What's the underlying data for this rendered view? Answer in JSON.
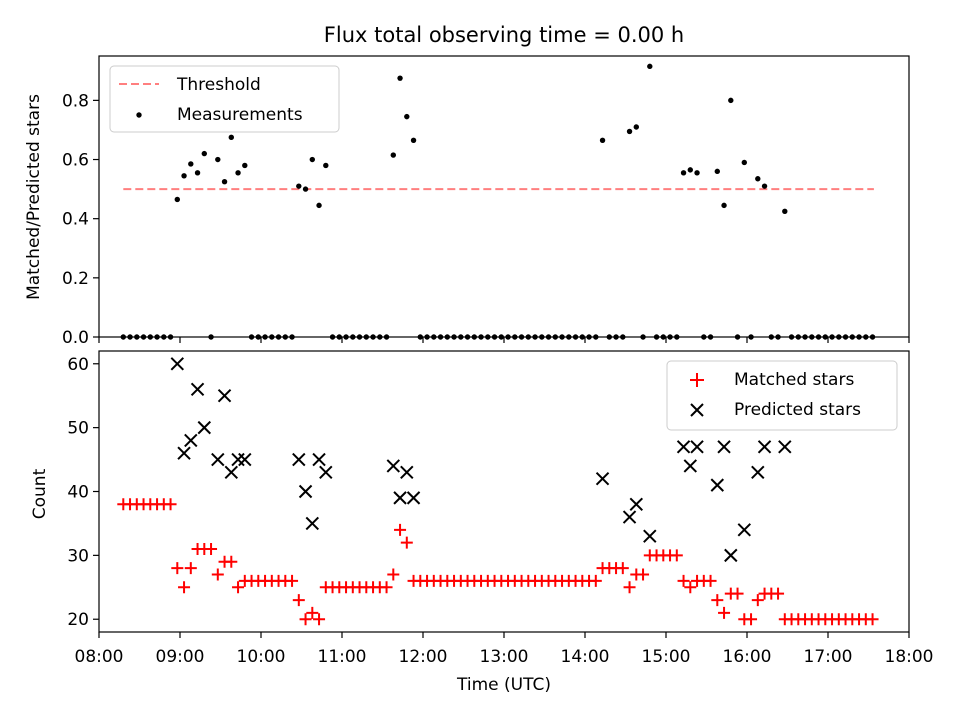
{
  "chart_data": [
    {
      "type": "scatter",
      "title": "Flux total observing time = 0.00 h",
      "ylabel": "Matched/Predicted stars",
      "xlabel": "",
      "xlim": [
        "08:00",
        "18:00"
      ],
      "ylim": [
        0,
        0.95
      ],
      "yticks": [
        "0.0",
        "0.2",
        "0.4",
        "0.6",
        "0.8"
      ],
      "grid": false,
      "legend_position": "top-left",
      "threshold": {
        "name": "Threshold",
        "y": 0.5,
        "x_range": [
          "08:18",
          "17:34"
        ],
        "color": "#ff7f7f",
        "style": "dashed"
      },
      "series": [
        {
          "name": "Measurements",
          "color": "#000000",
          "points": [
            [
              "08:18",
              0
            ],
            [
              "08:23",
              0
            ],
            [
              "08:28",
              0
            ],
            [
              "08:33",
              0
            ],
            [
              "08:38",
              0
            ],
            [
              "08:43",
              0
            ],
            [
              "08:48",
              0
            ],
            [
              "08:53",
              0
            ],
            [
              "08:58",
              0.465
            ],
            [
              "09:03",
              0.545
            ],
            [
              "09:08",
              0.585
            ],
            [
              "09:13",
              0.555
            ],
            [
              "09:18",
              0.62
            ],
            [
              "09:23",
              0
            ],
            [
              "09:28",
              0.6
            ],
            [
              "09:33",
              0.525
            ],
            [
              "09:38",
              0.675
            ],
            [
              "09:43",
              0.555
            ],
            [
              "09:48",
              0.58
            ],
            [
              "09:53",
              0
            ],
            [
              "09:58",
              0
            ],
            [
              "10:03",
              0
            ],
            [
              "10:08",
              0
            ],
            [
              "10:13",
              0
            ],
            [
              "10:18",
              0
            ],
            [
              "10:23",
              0
            ],
            [
              "10:28",
              0.51
            ],
            [
              "10:33",
              0.5
            ],
            [
              "10:38",
              0.6
            ],
            [
              "10:43",
              0.445
            ],
            [
              "10:48",
              0.58
            ],
            [
              "10:53",
              0
            ],
            [
              "10:58",
              0
            ],
            [
              "11:03",
              0
            ],
            [
              "11:08",
              0
            ],
            [
              "11:13",
              0
            ],
            [
              "11:18",
              0
            ],
            [
              "11:23",
              0
            ],
            [
              "11:28",
              0
            ],
            [
              "11:33",
              0
            ],
            [
              "11:38",
              0.615
            ],
            [
              "11:43",
              0.875
            ],
            [
              "11:48",
              0.745
            ],
            [
              "11:53",
              0.665
            ],
            [
              "11:58",
              0
            ],
            [
              "12:03",
              0
            ],
            [
              "12:08",
              0
            ],
            [
              "12:13",
              0
            ],
            [
              "12:18",
              0
            ],
            [
              "12:23",
              0
            ],
            [
              "12:28",
              0
            ],
            [
              "12:33",
              0
            ],
            [
              "12:38",
              0
            ],
            [
              "12:43",
              0
            ],
            [
              "12:48",
              0
            ],
            [
              "12:53",
              0
            ],
            [
              "12:58",
              0
            ],
            [
              "13:03",
              0
            ],
            [
              "13:08",
              0
            ],
            [
              "13:13",
              0
            ],
            [
              "13:18",
              0
            ],
            [
              "13:23",
              0
            ],
            [
              "13:28",
              0
            ],
            [
              "13:33",
              0
            ],
            [
              "13:38",
              0
            ],
            [
              "13:43",
              0
            ],
            [
              "13:48",
              0
            ],
            [
              "13:53",
              0
            ],
            [
              "13:58",
              0
            ],
            [
              "14:03",
              0
            ],
            [
              "14:08",
              0
            ],
            [
              "14:13",
              0.665
            ],
            [
              "14:18",
              0
            ],
            [
              "14:23",
              0
            ],
            [
              "14:28",
              0
            ],
            [
              "14:33",
              0.695
            ],
            [
              "14:38",
              0.71
            ],
            [
              "14:43",
              0
            ],
            [
              "14:48",
              0.915
            ],
            [
              "14:53",
              0
            ],
            [
              "14:58",
              0
            ],
            [
              "15:03",
              0
            ],
            [
              "15:08",
              0
            ],
            [
              "15:13",
              0.555
            ],
            [
              "15:18",
              0.565
            ],
            [
              "15:23",
              0.555
            ],
            [
              "15:28",
              0
            ],
            [
              "15:33",
              0
            ],
            [
              "15:38",
              0.56
            ],
            [
              "15:43",
              0.445
            ],
            [
              "15:48",
              0.8
            ],
            [
              "15:53",
              0
            ],
            [
              "15:58",
              0.59
            ],
            [
              "16:03",
              0
            ],
            [
              "16:08",
              0.535
            ],
            [
              "16:13",
              0.51
            ],
            [
              "16:18",
              0
            ],
            [
              "16:23",
              0
            ],
            [
              "16:28",
              0.425
            ],
            [
              "16:33",
              0
            ],
            [
              "16:38",
              0
            ],
            [
              "16:43",
              0
            ],
            [
              "16:48",
              0
            ],
            [
              "16:53",
              0
            ],
            [
              "16:58",
              0
            ],
            [
              "17:03",
              0
            ],
            [
              "17:08",
              0
            ],
            [
              "17:13",
              0
            ],
            [
              "17:18",
              0
            ],
            [
              "17:23",
              0
            ],
            [
              "17:28",
              0
            ],
            [
              "17:33",
              0
            ]
          ]
        }
      ]
    },
    {
      "type": "scatter",
      "title": "",
      "xlabel": "Time (UTC)",
      "ylabel": "Count",
      "xlim": [
        "08:00",
        "18:00"
      ],
      "ylim": [
        18,
        62
      ],
      "xticks": [
        "08:00",
        "09:00",
        "10:00",
        "11:00",
        "12:00",
        "13:00",
        "14:00",
        "15:00",
        "16:00",
        "17:00",
        "18:00"
      ],
      "yticks": [
        "20",
        "30",
        "40",
        "50",
        "60"
      ],
      "grid": false,
      "legend_position": "top-right",
      "series": [
        {
          "name": "Matched stars",
          "marker": "plus",
          "color": "#ff0000",
          "points": [
            [
              "08:18",
              38
            ],
            [
              "08:23",
              38
            ],
            [
              "08:28",
              38
            ],
            [
              "08:33",
              38
            ],
            [
              "08:38",
              38
            ],
            [
              "08:43",
              38
            ],
            [
              "08:48",
              38
            ],
            [
              "08:53",
              38
            ],
            [
              "08:58",
              28
            ],
            [
              "09:03",
              25
            ],
            [
              "09:08",
              28
            ],
            [
              "09:13",
              31
            ],
            [
              "09:18",
              31
            ],
            [
              "09:23",
              31
            ],
            [
              "09:28",
              27
            ],
            [
              "09:33",
              29
            ],
            [
              "09:38",
              29
            ],
            [
              "09:43",
              25
            ],
            [
              "09:48",
              26
            ],
            [
              "09:53",
              26
            ],
            [
              "09:58",
              26
            ],
            [
              "10:03",
              26
            ],
            [
              "10:08",
              26
            ],
            [
              "10:13",
              26
            ],
            [
              "10:18",
              26
            ],
            [
              "10:23",
              26
            ],
            [
              "10:28",
              23
            ],
            [
              "10:33",
              20
            ],
            [
              "10:38",
              21
            ],
            [
              "10:43",
              20
            ],
            [
              "10:48",
              25
            ],
            [
              "10:53",
              25
            ],
            [
              "10:58",
              25
            ],
            [
              "11:03",
              25
            ],
            [
              "11:08",
              25
            ],
            [
              "11:13",
              25
            ],
            [
              "11:18",
              25
            ],
            [
              "11:23",
              25
            ],
            [
              "11:28",
              25
            ],
            [
              "11:33",
              25
            ],
            [
              "11:38",
              27
            ],
            [
              "11:43",
              34
            ],
            [
              "11:48",
              32
            ],
            [
              "11:53",
              26
            ],
            [
              "11:58",
              26
            ],
            [
              "12:03",
              26
            ],
            [
              "12:08",
              26
            ],
            [
              "12:13",
              26
            ],
            [
              "12:18",
              26
            ],
            [
              "12:23",
              26
            ],
            [
              "12:28",
              26
            ],
            [
              "12:33",
              26
            ],
            [
              "12:38",
              26
            ],
            [
              "12:43",
              26
            ],
            [
              "12:48",
              26
            ],
            [
              "12:53",
              26
            ],
            [
              "12:58",
              26
            ],
            [
              "13:03",
              26
            ],
            [
              "13:08",
              26
            ],
            [
              "13:13",
              26
            ],
            [
              "13:18",
              26
            ],
            [
              "13:23",
              26
            ],
            [
              "13:28",
              26
            ],
            [
              "13:33",
              26
            ],
            [
              "13:38",
              26
            ],
            [
              "13:43",
              26
            ],
            [
              "13:48",
              26
            ],
            [
              "13:53",
              26
            ],
            [
              "13:58",
              26
            ],
            [
              "14:03",
              26
            ],
            [
              "14:08",
              26
            ],
            [
              "14:13",
              28
            ],
            [
              "14:18",
              28
            ],
            [
              "14:23",
              28
            ],
            [
              "14:28",
              28
            ],
            [
              "14:33",
              25
            ],
            [
              "14:38",
              27
            ],
            [
              "14:43",
              27
            ],
            [
              "14:48",
              30
            ],
            [
              "14:53",
              30
            ],
            [
              "14:58",
              30
            ],
            [
              "15:03",
              30
            ],
            [
              "15:08",
              30
            ],
            [
              "15:13",
              26
            ],
            [
              "15:18",
              25
            ],
            [
              "15:23",
              26
            ],
            [
              "15:28",
              26
            ],
            [
              "15:33",
              26
            ],
            [
              "15:38",
              23
            ],
            [
              "15:43",
              21
            ],
            [
              "15:48",
              24
            ],
            [
              "15:53",
              24
            ],
            [
              "15:58",
              20
            ],
            [
              "16:03",
              20
            ],
            [
              "16:08",
              23
            ],
            [
              "16:13",
              24
            ],
            [
              "16:18",
              24
            ],
            [
              "16:23",
              24
            ],
            [
              "16:28",
              20
            ],
            [
              "16:33",
              20
            ],
            [
              "16:38",
              20
            ],
            [
              "16:43",
              20
            ],
            [
              "16:48",
              20
            ],
            [
              "16:53",
              20
            ],
            [
              "16:58",
              20
            ],
            [
              "17:03",
              20
            ],
            [
              "17:08",
              20
            ],
            [
              "17:13",
              20
            ],
            [
              "17:18",
              20
            ],
            [
              "17:23",
              20
            ],
            [
              "17:28",
              20
            ],
            [
              "17:33",
              20
            ]
          ]
        },
        {
          "name": "Predicted stars",
          "marker": "x",
          "color": "#000000",
          "points": [
            [
              "08:58",
              60
            ],
            [
              "09:03",
              46
            ],
            [
              "09:08",
              48
            ],
            [
              "09:13",
              56
            ],
            [
              "09:18",
              50
            ],
            [
              "09:28",
              45
            ],
            [
              "09:33",
              55
            ],
            [
              "09:38",
              43
            ],
            [
              "09:43",
              45
            ],
            [
              "09:48",
              45
            ],
            [
              "10:28",
              45
            ],
            [
              "10:33",
              40
            ],
            [
              "10:38",
              35
            ],
            [
              "10:43",
              45
            ],
            [
              "10:48",
              43
            ],
            [
              "11:38",
              44
            ],
            [
              "11:43",
              39
            ],
            [
              "11:48",
              43
            ],
            [
              "11:53",
              39
            ],
            [
              "14:13",
              42
            ],
            [
              "14:33",
              36
            ],
            [
              "14:38",
              38
            ],
            [
              "14:48",
              33
            ],
            [
              "15:13",
              47
            ],
            [
              "15:18",
              44
            ],
            [
              "15:23",
              47
            ],
            [
              "15:38",
              41
            ],
            [
              "15:43",
              47
            ],
            [
              "15:48",
              30
            ],
            [
              "15:58",
              34
            ],
            [
              "16:08",
              43
            ],
            [
              "16:13",
              47
            ],
            [
              "16:28",
              47
            ]
          ]
        }
      ]
    }
  ]
}
